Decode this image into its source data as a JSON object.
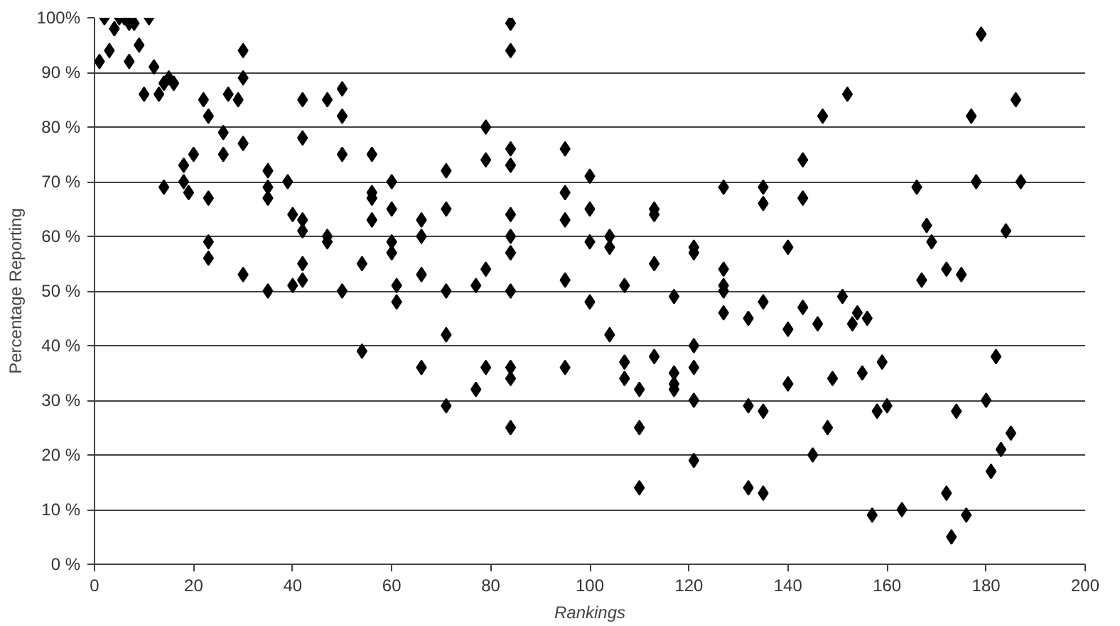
{
  "chart_data": {
    "type": "scatter",
    "xlabel": "Rankings",
    "ylabel": "Percentage Reporting",
    "marker": "diamond",
    "grid": "y",
    "xlim": [
      0,
      200
    ],
    "xticks": [
      0,
      20,
      40,
      60,
      80,
      100,
      120,
      140,
      160,
      180,
      200
    ],
    "ylim": [
      0,
      100
    ],
    "yticks": [
      {
        "value": 0,
        "label": "0 %"
      },
      {
        "value": 10,
        "label": "10 %"
      },
      {
        "value": 20,
        "label": "20 %"
      },
      {
        "value": 30,
        "label": "30 %"
      },
      {
        "value": 40,
        "label": "40 %"
      },
      {
        "value": 50,
        "label": "50 %"
      },
      {
        "value": 60,
        "label": "60 %"
      },
      {
        "value": 70,
        "label": "70 %"
      },
      {
        "value": 80,
        "label": "80 %"
      },
      {
        "value": 90,
        "label": "90 %"
      },
      {
        "value": 100,
        "label": "100%"
      }
    ],
    "series": [
      {
        "color": "#000000",
        "x": [
          1,
          2,
          3,
          4,
          5,
          6,
          7,
          7,
          8,
          9,
          10,
          11,
          12,
          13,
          14,
          14,
          15,
          16,
          18,
          18,
          19,
          20,
          22,
          23,
          23,
          23,
          23,
          26,
          26,
          27,
          29,
          30,
          30,
          30,
          30,
          35,
          35,
          35,
          35,
          39,
          40,
          40,
          42,
          42,
          42,
          42,
          42,
          42,
          47,
          47,
          47,
          50,
          50,
          50,
          50,
          54,
          54,
          56,
          56,
          56,
          56,
          60,
          60,
          60,
          60,
          61,
          61,
          66,
          66,
          66,
          66,
          71,
          71,
          71,
          71,
          71,
          77,
          77,
          79,
          79,
          79,
          79,
          84,
          84,
          84,
          84,
          84,
          84,
          84,
          84,
          84,
          84,
          84,
          95,
          95,
          95,
          95,
          95,
          100,
          100,
          100,
          100,
          104,
          104,
          104,
          107,
          107,
          107,
          110,
          110,
          110,
          113,
          113,
          113,
          113,
          117,
          117,
          117,
          117,
          121,
          121,
          121,
          121,
          121,
          121,
          127,
          127,
          127,
          127,
          127,
          132,
          132,
          132,
          135,
          135,
          135,
          135,
          135,
          140,
          140,
          140,
          143,
          143,
          143,
          145,
          146,
          147,
          148,
          149,
          151,
          152,
          153,
          154,
          156,
          155,
          157,
          158,
          159,
          160,
          163,
          166,
          167,
          168,
          169,
          172,
          172,
          173,
          174,
          175,
          176,
          177,
          178,
          179,
          180,
          181,
          182,
          183,
          184,
          185,
          186,
          187
        ],
        "values": [
          92,
          100,
          94,
          98,
          100,
          100,
          99,
          92,
          99,
          95,
          86,
          100,
          91,
          86,
          69,
          88,
          89,
          88,
          70,
          73,
          68,
          75,
          85,
          82,
          67,
          59,
          56,
          79,
          75,
          86,
          85,
          94,
          89,
          77,
          53,
          72,
          69,
          67,
          50,
          70,
          64,
          51,
          85,
          78,
          63,
          61,
          55,
          52,
          85,
          60,
          59,
          87,
          82,
          75,
          50,
          55,
          39,
          75,
          68,
          67,
          63,
          70,
          65,
          59,
          57,
          51,
          48,
          63,
          60,
          53,
          36,
          72,
          65,
          50,
          42,
          29,
          32,
          51,
          80,
          74,
          54,
          36,
          99,
          94,
          76,
          73,
          64,
          60,
          57,
          50,
          36,
          34,
          25,
          76,
          68,
          63,
          52,
          36,
          71,
          65,
          59,
          48,
          60,
          58,
          42,
          51,
          37,
          34,
          32,
          25,
          14,
          65,
          64,
          55,
          38,
          49,
          35,
          33,
          32,
          58,
          57,
          40,
          36,
          30,
          19,
          69,
          54,
          51,
          50,
          46,
          45,
          29,
          14,
          69,
          66,
          48,
          28,
          13,
          58,
          43,
          33,
          74,
          67,
          47,
          20,
          44,
          82,
          25,
          34,
          49,
          86,
          44,
          46,
          45,
          35,
          9,
          28,
          37,
          29,
          10,
          69,
          52,
          62,
          59,
          54,
          13,
          5,
          28,
          53,
          9,
          82,
          70,
          97,
          30,
          17,
          38,
          21,
          61,
          24,
          85,
          70
        ]
      }
    ]
  }
}
